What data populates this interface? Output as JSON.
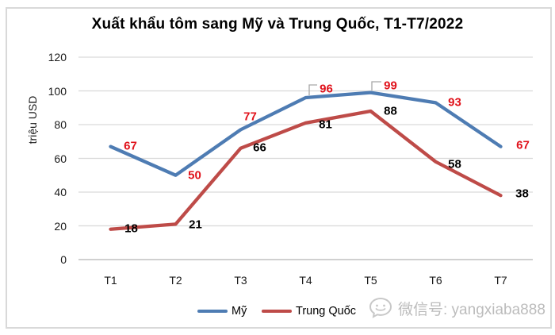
{
  "chart_data": {
    "type": "line",
    "title": "Xuất khẩu tôm sang Mỹ và Trung Quốc, T1-T7/2022",
    "ylabel": "triệu USD",
    "xlabel": "",
    "categories": [
      "T1",
      "T2",
      "T3",
      "T4",
      "T5",
      "T6",
      "T7"
    ],
    "yticks": [
      0,
      20,
      40,
      60,
      80,
      100,
      120
    ],
    "ylim": [
      0,
      120
    ],
    "grid": true,
    "legend_position": "bottom",
    "series": [
      {
        "name": "Mỹ",
        "color": "#4E7CB3",
        "label_color": "#E0121B",
        "values": [
          67,
          50,
          77,
          96,
          99,
          93,
          67
        ],
        "callout_indices": [
          3,
          4
        ]
      },
      {
        "name": "Trung Quốc",
        "color": "#BE4B48",
        "label_color": "#000000",
        "values": [
          18,
          21,
          66,
          81,
          88,
          58,
          38
        ],
        "callout_indices": []
      }
    ]
  },
  "watermark": {
    "text": "微信号: yangxiaba888",
    "icon": "wechat-chat-bubble-icon"
  },
  "colors": {
    "gridline": "#D9D9D9",
    "axis_line": "#C0C0C0",
    "leader_line": "#A6A6A6",
    "frame_border": "#D9D9D9",
    "watermark_text": "#BCBCBC"
  }
}
